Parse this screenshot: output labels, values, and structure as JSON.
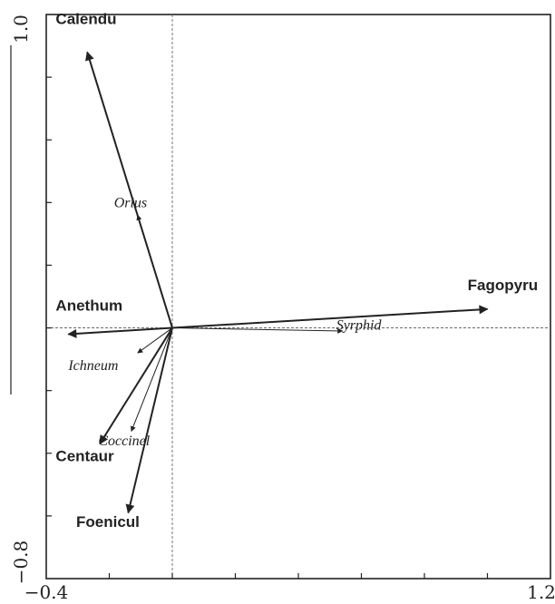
{
  "chart_data": {
    "type": "biplot",
    "xlim": [
      -0.4,
      1.2
    ],
    "ylim": [
      -0.8,
      1.0
    ],
    "x_tick_labels": [
      {
        "value": -0.4,
        "label": "−0.4"
      },
      {
        "value": 1.2,
        "label": "1.2"
      }
    ],
    "y_tick_labels": [
      {
        "value": 1.0,
        "label": "1.0"
      },
      {
        "value": -0.8,
        "label": "−0.8"
      }
    ],
    "x_minor_ticks": [
      -0.2,
      0.0,
      0.2,
      0.4,
      0.6,
      0.8,
      1.0
    ],
    "y_minor_ticks": [
      0.8,
      0.6,
      0.4,
      0.2,
      0.0,
      -0.2,
      -0.4,
      -0.6
    ],
    "origin_lines": true,
    "environment_vectors": [
      {
        "label": "Calendu",
        "x": -0.27,
        "y": 0.88
      },
      {
        "label": "Fagopyru",
        "x": 1.0,
        "y": 0.06
      },
      {
        "label": "Anethum",
        "x": -0.33,
        "y": -0.02
      },
      {
        "label": "Centaur",
        "x": -0.23,
        "y": -0.37
      },
      {
        "label": "Foenicul",
        "x": -0.14,
        "y": -0.59
      }
    ],
    "species_vectors": [
      {
        "label": "Orius",
        "x": -0.11,
        "y": 0.36
      },
      {
        "label": "Syrphid",
        "x": 0.54,
        "y": -0.01
      },
      {
        "label": "Ichneum",
        "x": -0.11,
        "y": -0.08
      },
      {
        "label": "Coccinel",
        "x": -0.13,
        "y": -0.33
      }
    ]
  }
}
